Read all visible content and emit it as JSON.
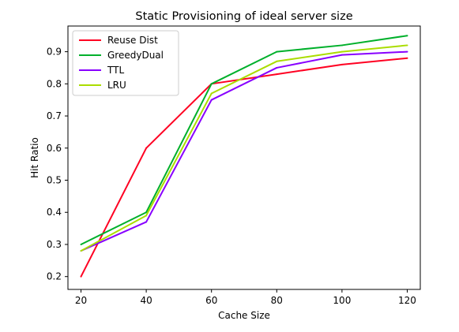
{
  "chart_data": {
    "type": "line",
    "title": "Static Provisioning of ideal server size",
    "xlabel": "Cache Size",
    "ylabel": "Hit Ratio",
    "x": [
      20,
      40,
      60,
      80,
      100,
      120
    ],
    "xlim": [
      16,
      124
    ],
    "ylim": [
      0.16,
      0.98
    ],
    "xticks": [
      20,
      40,
      60,
      80,
      100,
      120
    ],
    "yticks": [
      0.2,
      0.3,
      0.4,
      0.5,
      0.6,
      0.7,
      0.8,
      0.9
    ],
    "grid": false,
    "legend_position": "top-left",
    "series": [
      {
        "name": "Reuse Dist",
        "color": "#ff0022",
        "values": [
          0.2,
          0.6,
          0.8,
          0.83,
          0.86,
          0.88
        ]
      },
      {
        "name": "GreedyDual",
        "color": "#00b02b",
        "values": [
          0.3,
          0.4,
          0.8,
          0.9,
          0.92,
          0.95
        ]
      },
      {
        "name": "TTL",
        "color": "#8800ff",
        "values": [
          0.28,
          0.37,
          0.75,
          0.85,
          0.89,
          0.9
        ]
      },
      {
        "name": "LRU",
        "color": "#aadd00",
        "values": [
          0.28,
          0.39,
          0.77,
          0.87,
          0.9,
          0.92
        ]
      }
    ]
  }
}
